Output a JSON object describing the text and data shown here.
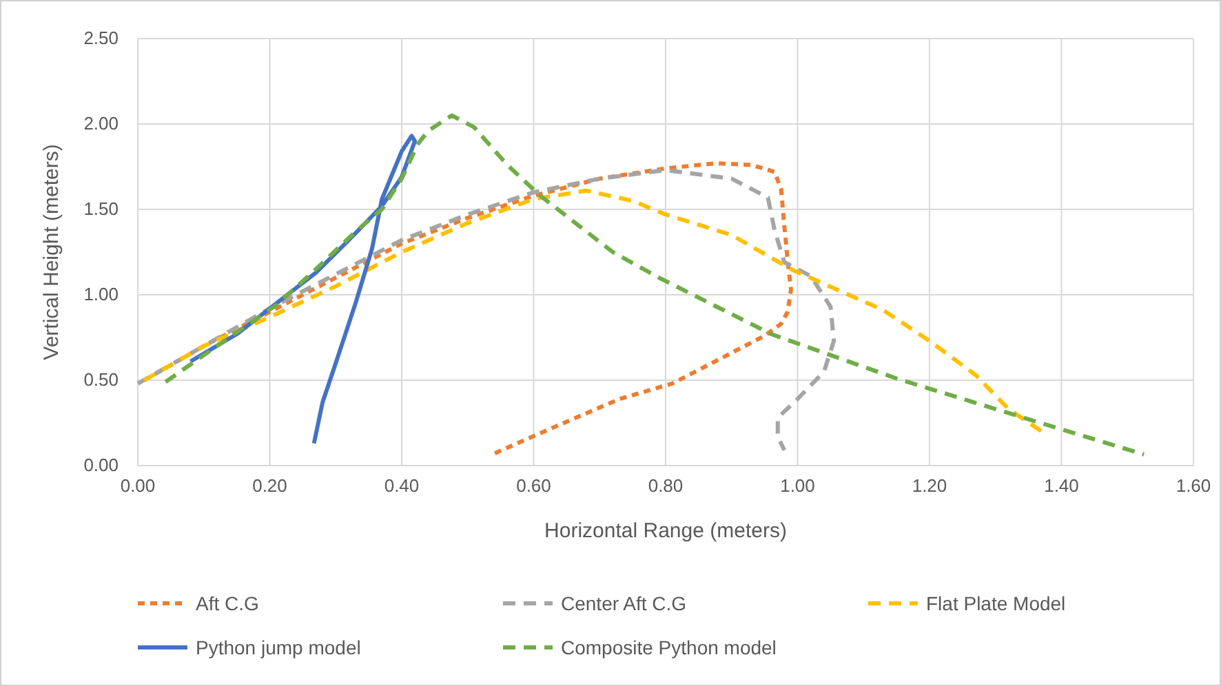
{
  "chart_data": {
    "type": "line",
    "xlabel": "Horizontal Range (meters)",
    "ylabel": "Vertical Height (meters)",
    "xlim": [
      0,
      1.6
    ],
    "xticks": [
      {
        "value": 0,
        "label": "0.00"
      },
      {
        "value": 0.2,
        "label": "0.20"
      },
      {
        "value": 0.4,
        "label": "0.40"
      },
      {
        "value": 0.6,
        "label": "0.60"
      },
      {
        "value": 0.8,
        "label": "0.80"
      },
      {
        "value": 1,
        "label": "1.00"
      },
      {
        "value": 1.2,
        "label": "1.20"
      },
      {
        "value": 1.4,
        "label": "1.40"
      },
      {
        "value": 1.6,
        "label": "1.60"
      }
    ],
    "ylim": [
      0,
      2.5
    ],
    "yticks": [
      {
        "value": 0,
        "label": "0.00"
      },
      {
        "value": 0.5,
        "label": "0.50"
      },
      {
        "value": 1,
        "label": "1.00"
      },
      {
        "value": 1.5,
        "label": "1.50"
      },
      {
        "value": 2,
        "label": "2.00"
      },
      {
        "value": 2.5,
        "label": "2.50"
      }
    ],
    "grid": true,
    "legend": "bottom",
    "marker": "none",
    "series": [
      {
        "name": "Aft C.G",
        "color": "#ed7d31",
        "line_style": "dotted",
        "x": [
          0.01,
          0.1,
          0.2,
          0.3,
          0.4,
          0.5,
          0.6,
          0.7,
          0.8,
          0.877,
          0.93,
          0.965,
          0.975,
          0.98,
          0.985,
          0.99,
          0.985,
          0.975,
          0.95,
          0.9,
          0.81,
          0.73,
          0.61,
          0.54
        ],
        "values": [
          0.5,
          0.7,
          0.9,
          1.1,
          1.3,
          1.45,
          1.58,
          1.68,
          1.74,
          1.77,
          1.76,
          1.72,
          1.62,
          1.4,
          1.2,
          1.03,
          0.9,
          0.83,
          0.76,
          0.66,
          0.48,
          0.39,
          0.19,
          0.07
        ]
      },
      {
        "name": "Center Aft C.G",
        "color": "#a5a5a5",
        "line_style": "dashed",
        "x": [
          0,
          0.1,
          0.2,
          0.3,
          0.4,
          0.5,
          0.6,
          0.7,
          0.8,
          0.9,
          0.955,
          0.965,
          0.98,
          1.02,
          1.05,
          1.055,
          1.04,
          1.0,
          0.97,
          0.97,
          0.98
        ],
        "values": [
          0.48,
          0.7,
          0.92,
          1.12,
          1.32,
          1.47,
          1.6,
          1.68,
          1.73,
          1.68,
          1.57,
          1.38,
          1.19,
          1.11,
          0.93,
          0.73,
          0.55,
          0.39,
          0.28,
          0.17,
          0.09
        ]
      },
      {
        "name": "Flat Plate Model",
        "color": "#ffc000",
        "line_style": "dashed",
        "x": [
          0.01,
          0.1,
          0.2,
          0.3,
          0.4,
          0.5,
          0.6,
          0.68,
          0.75,
          0.8,
          0.9,
          0.99,
          1.13,
          1.2,
          1.27,
          1.32,
          1.37
        ],
        "values": [
          0.5,
          0.7,
          0.87,
          1.05,
          1.25,
          1.42,
          1.56,
          1.61,
          1.55,
          1.47,
          1.35,
          1.15,
          0.91,
          0.73,
          0.53,
          0.33,
          0.2
        ]
      },
      {
        "name": "Python jump model",
        "color": "#4472c4",
        "line_style": "solid",
        "x": [
          0.08,
          0.15,
          0.2,
          0.27,
          0.33,
          0.37,
          0.4,
          0.42,
          0.415,
          0.4,
          0.37,
          0.355,
          0.33,
          0.3,
          0.28,
          0.267
        ],
        "values": [
          0.61,
          0.77,
          0.92,
          1.13,
          1.36,
          1.52,
          1.69,
          1.9,
          1.93,
          1.84,
          1.56,
          1.27,
          0.95,
          0.6,
          0.37,
          0.13
        ]
      },
      {
        "name": "Composite Python model",
        "color": "#70ad47",
        "line_style": "dashed",
        "x": [
          0.042,
          0.146,
          0.21,
          0.27,
          0.33,
          0.37,
          0.4,
          0.424,
          0.44,
          0.476,
          0.51,
          0.56,
          0.61,
          0.72,
          0.79,
          0.96,
          1.15,
          1.385,
          1.525
        ],
        "values": [
          0.49,
          0.77,
          0.94,
          1.15,
          1.37,
          1.5,
          1.68,
          1.88,
          1.96,
          2.05,
          1.98,
          1.76,
          1.58,
          1.25,
          1.1,
          0.77,
          0.51,
          0.23,
          0.065
        ]
      }
    ]
  }
}
